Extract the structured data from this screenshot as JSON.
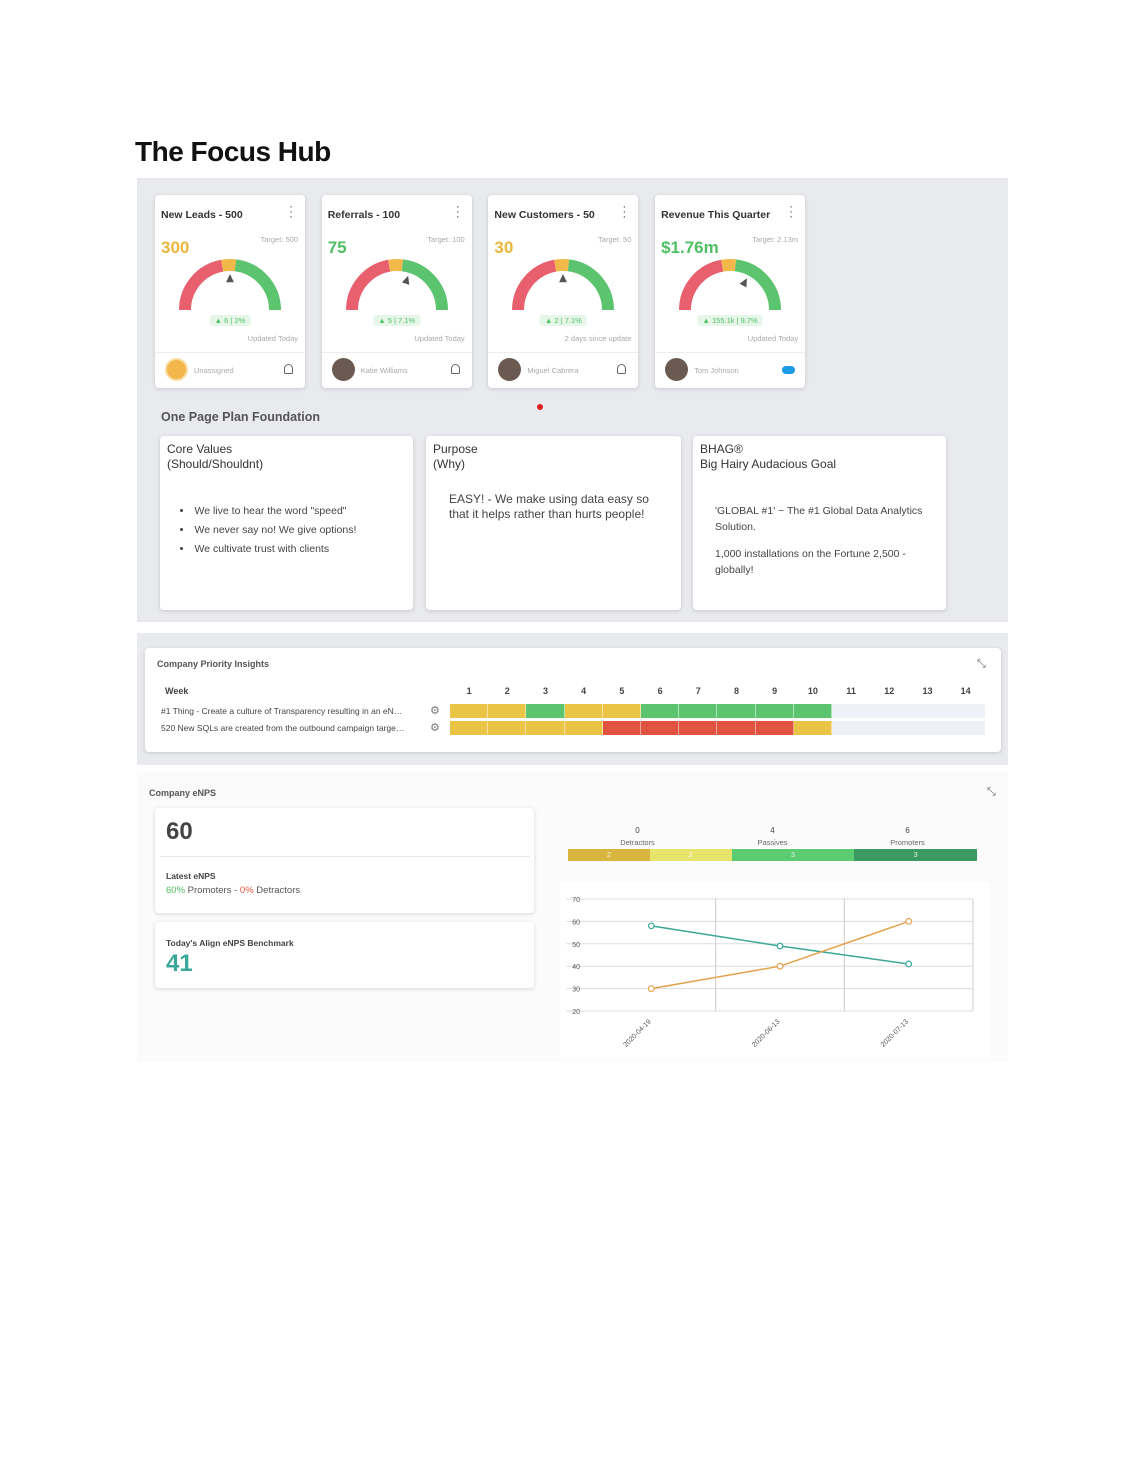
{
  "title": "The Focus Hub",
  "kpi_cards": [
    {
      "title": "New Leads - 500",
      "value": "300",
      "value_color": "#e8b73c",
      "target": "Target: 500",
      "change": "▲ 6 | 2%",
      "updated": "Updated Today",
      "owner": "Unassigned"
    },
    {
      "title": "Referrals - 100",
      "value": "75",
      "value_color": "#4fbf63",
      "target": "Target: 100",
      "change": "▲ 5 | 7.1%",
      "updated": "Updated Today",
      "owner": "Katie Williams"
    },
    {
      "title": "New Customers - 50",
      "value": "30",
      "value_color": "#e8b73c",
      "target": "Target: 50",
      "change": "▲ 2 | 7.1%",
      "updated": "2 days since update",
      "owner": "Miguel Cabrera"
    },
    {
      "title": "Revenue This Quarter",
      "value": "$1.76m",
      "value_color": "#4fbf63",
      "target": "Target: 2.13m",
      "change": "▲ 155.1k | 9.7%",
      "updated": "Updated Today",
      "owner": "Tom Johnson"
    }
  ],
  "plan": {
    "heading": "One Page Plan Foundation",
    "core_values": {
      "title": "Core Values",
      "subtitle": "(Should/Shouldnt)",
      "items": [
        "We live to hear the word \"speed\"",
        "We never say no! We give options!",
        "We cultivate trust with clients"
      ]
    },
    "purpose": {
      "title": "Purpose",
      "subtitle": "(Why)",
      "text": "EASY! - We make using data easy so that it helps rather than hurts people!"
    },
    "bhag": {
      "title": "BHAG®",
      "subtitle": "Big Hairy Audacious Goal",
      "paragraphs": [
        "'GLOBAL #1' ~ The #1 Global Data Analytics Solution.",
        "1,000 installations on the Fortune 2,500 - globally!"
      ]
    }
  },
  "priority_insights": {
    "title": "Company Priority Insights",
    "week_label": "Week",
    "weeks": [
      1,
      2,
      3,
      4,
      5,
      6,
      7,
      8,
      9,
      10,
      11,
      12,
      13,
      14
    ],
    "rows": [
      {
        "label": "#1 Thing - Create a culture of Transparency resulting in an eN…",
        "cells": [
          "#e9c445",
          "#e9c445",
          "#5cc46e",
          "#e9c445",
          "#e9c445",
          "#5cc46e",
          "#5cc46e",
          "#5cc46e",
          "#5cc46e",
          "#5cc46e",
          null,
          null,
          null,
          null
        ]
      },
      {
        "label": "520 New SQLs are created from the outbound campaign targe…",
        "cells": [
          "#e9c445",
          "#e9c445",
          "#e9c445",
          "#e9c445",
          "#e0533f",
          "#e0533f",
          "#e0533f",
          "#e0533f",
          "#e0533f",
          "#e9c445",
          null,
          null,
          null,
          null
        ]
      }
    ]
  },
  "enps": {
    "title": "Company eNPS",
    "score": 60,
    "latest_label": "Latest eNPS",
    "promoters_pct": "60%",
    "promoters_text": "Promoters -",
    "detractors_pct": "0%",
    "detractors_text": "Detractors",
    "benchmark_label": "Today's Align eNPS Benchmark",
    "benchmark": 41,
    "groups": [
      {
        "count": 0,
        "label": "Detractors"
      },
      {
        "count": 4,
        "label": "Passives"
      },
      {
        "count": 6,
        "label": "Promoters"
      }
    ],
    "segments": [
      {
        "value": 2,
        "color": "#d8b53f"
      },
      {
        "value": 2,
        "color": "#e6e46b"
      },
      {
        "value": 3,
        "color": "#5ccc73"
      },
      {
        "value": 3,
        "color": "#3b9a62"
      }
    ]
  },
  "chart_data": {
    "type": "line",
    "categories": [
      "2020-04-19",
      "2020-06-13",
      "2020-07-13"
    ],
    "series": [
      {
        "color": "#3aa899",
        "values": [
          58,
          49,
          41
        ]
      },
      {
        "color": "#e3a24b",
        "values": [
          30,
          40,
          60
        ]
      }
    ],
    "ylim": [
      20,
      70
    ],
    "yticks": [
      20,
      30,
      40,
      50,
      60,
      70
    ],
    "grid": true
  }
}
